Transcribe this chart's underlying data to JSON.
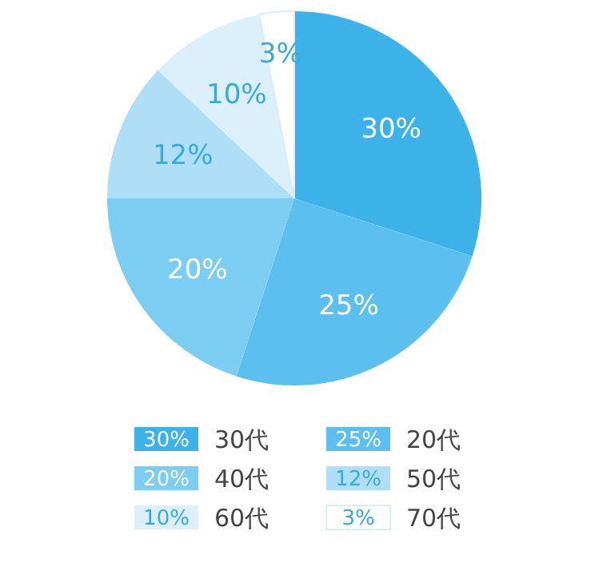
{
  "chart_data": {
    "type": "pie",
    "categories": [
      "30代",
      "20代",
      "40代",
      "50代",
      "60代",
      "70代"
    ],
    "values": [
      30,
      25,
      20,
      12,
      10,
      3
    ],
    "value_labels": [
      "30%",
      "25%",
      "20%",
      "12%",
      "10%",
      "3%"
    ],
    "colors": [
      "#3cb2e9",
      "#5bc0ef",
      "#7ccdf2",
      "#aedff6",
      "#dbf0fb",
      "#ffffff"
    ],
    "legend": "bottom"
  }
}
